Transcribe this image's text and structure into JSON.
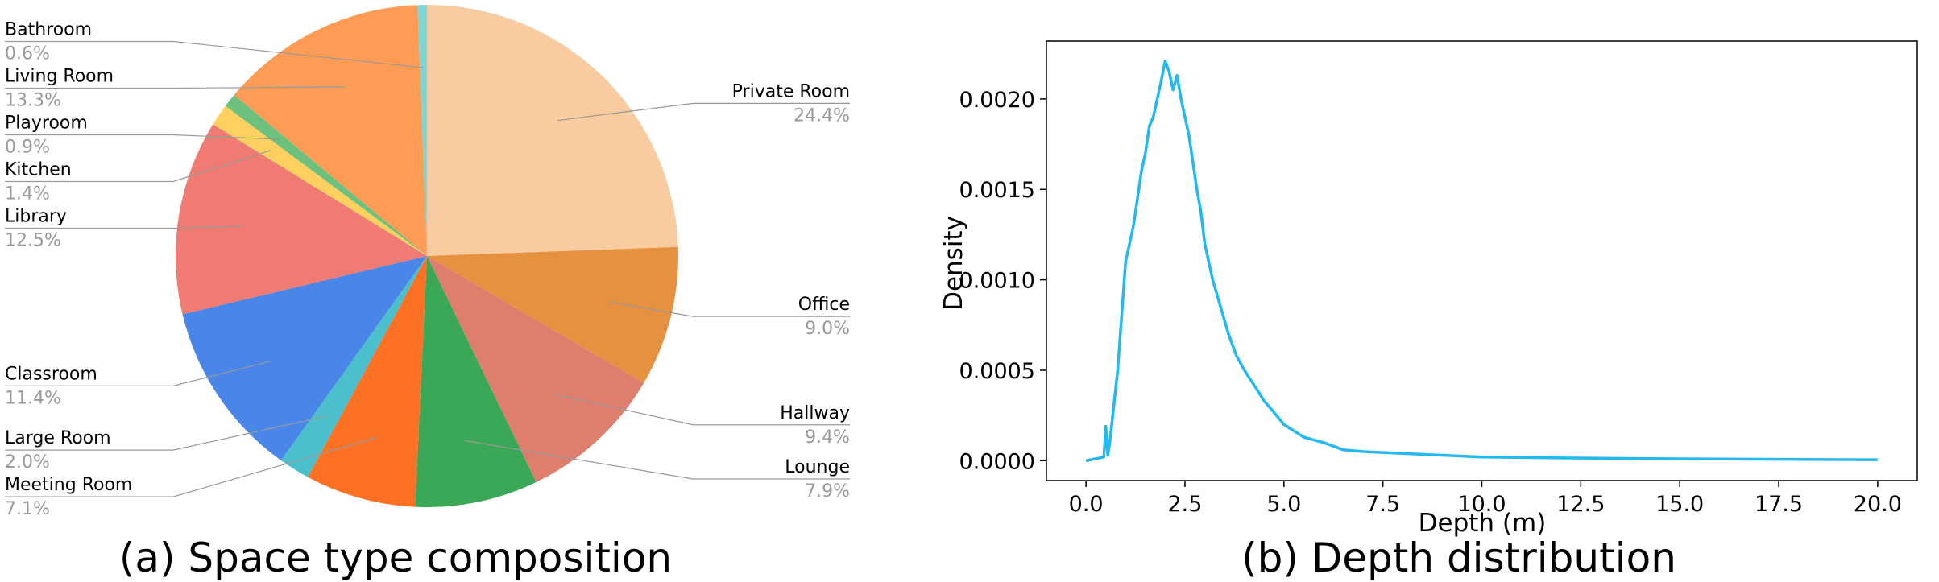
{
  "chart_data": [
    {
      "type": "pie",
      "title": "(a) Space type composition",
      "categories": [
        "Private Room",
        "Office",
        "Hallway",
        "Lounge",
        "Meeting Room",
        "Large Room",
        "Classroom",
        "Library",
        "Kitchen",
        "Playroom",
        "Living Room",
        "Bathroom"
      ],
      "values": [
        24.4,
        9.0,
        9.4,
        7.9,
        7.1,
        2.0,
        11.4,
        12.5,
        1.4,
        0.9,
        13.3,
        0.6
      ],
      "value_labels": [
        "24.4%",
        "9.0%",
        "9.4%",
        "7.9%",
        "7.1%",
        "2.0%",
        "11.4%",
        "12.5%",
        "1.4%",
        "0.9%",
        "13.3%",
        "0.6%"
      ],
      "colors": [
        "#f8cba0",
        "#e59140",
        "#de7f6e",
        "#3aa857",
        "#fd7125",
        "#4bbfcc",
        "#4a86e8",
        "#ef7b73",
        "#fdd060",
        "#6cc17e",
        "#fe9c56",
        "#7fd4d6"
      ]
    },
    {
      "type": "line",
      "title": "(b) Depth distribution",
      "xlabel": "Depth (m)",
      "ylabel": "Density",
      "color": "#22b8f0",
      "x": [
        0,
        0.45,
        0.5,
        0.55,
        0.6,
        0.7,
        0.8,
        0.9,
        1.0,
        1.1,
        1.2,
        1.3,
        1.4,
        1.5,
        1.6,
        1.7,
        1.8,
        1.9,
        2.0,
        2.1,
        2.2,
        2.3,
        2.4,
        2.5,
        2.6,
        2.7,
        2.8,
        2.9,
        3.0,
        3.2,
        3.4,
        3.6,
        3.8,
        4.0,
        4.3,
        4.5,
        4.7,
        5.0,
        5.5,
        6.0,
        6.5,
        7.0,
        8.0,
        9.0,
        10,
        12,
        15,
        20
      ],
      "values": [
        0,
        2e-05,
        0.00019,
        3e-05,
        0.0001,
        0.0003,
        0.0005,
        0.0008,
        0.0011,
        0.0012,
        0.0013,
        0.00145,
        0.0016,
        0.0017,
        0.00185,
        0.0019,
        0.002,
        0.0021,
        0.00221,
        0.00215,
        0.00205,
        0.00213,
        0.002,
        0.0019,
        0.0018,
        0.00165,
        0.0015,
        0.00138,
        0.0012,
        0.001,
        0.00085,
        0.0007,
        0.00058,
        0.0005,
        0.0004,
        0.00033,
        0.00028,
        0.0002,
        0.00013,
        0.0001,
        6e-05,
        5e-05,
        4e-05,
        3e-05,
        2e-05,
        1.5e-05,
        1e-05,
        5e-06
      ],
      "xlim": [
        -1,
        21
      ],
      "ylim": [
        -0.00011,
        0.00232
      ],
      "xticks": [
        {
          "value": 0,
          "label": "0.0"
        },
        2.5,
        {
          "value": 5,
          "label": "5.0"
        },
        7.5,
        {
          "value": 10,
          "label": "10.0"
        },
        12.5,
        {
          "value": 15,
          "label": "15.0"
        },
        17.5,
        {
          "value": 20,
          "label": "20.0"
        }
      ],
      "yticks": [
        {
          "value": 0,
          "label": "0.0000"
        },
        {
          "value": 0.0005,
          "label": "0.0005"
        },
        {
          "value": 0.001,
          "label": "0.0010"
        },
        {
          "value": 0.0015,
          "label": "0.0015"
        },
        {
          "value": 0.002,
          "label": "0.0020"
        }
      ]
    }
  ]
}
